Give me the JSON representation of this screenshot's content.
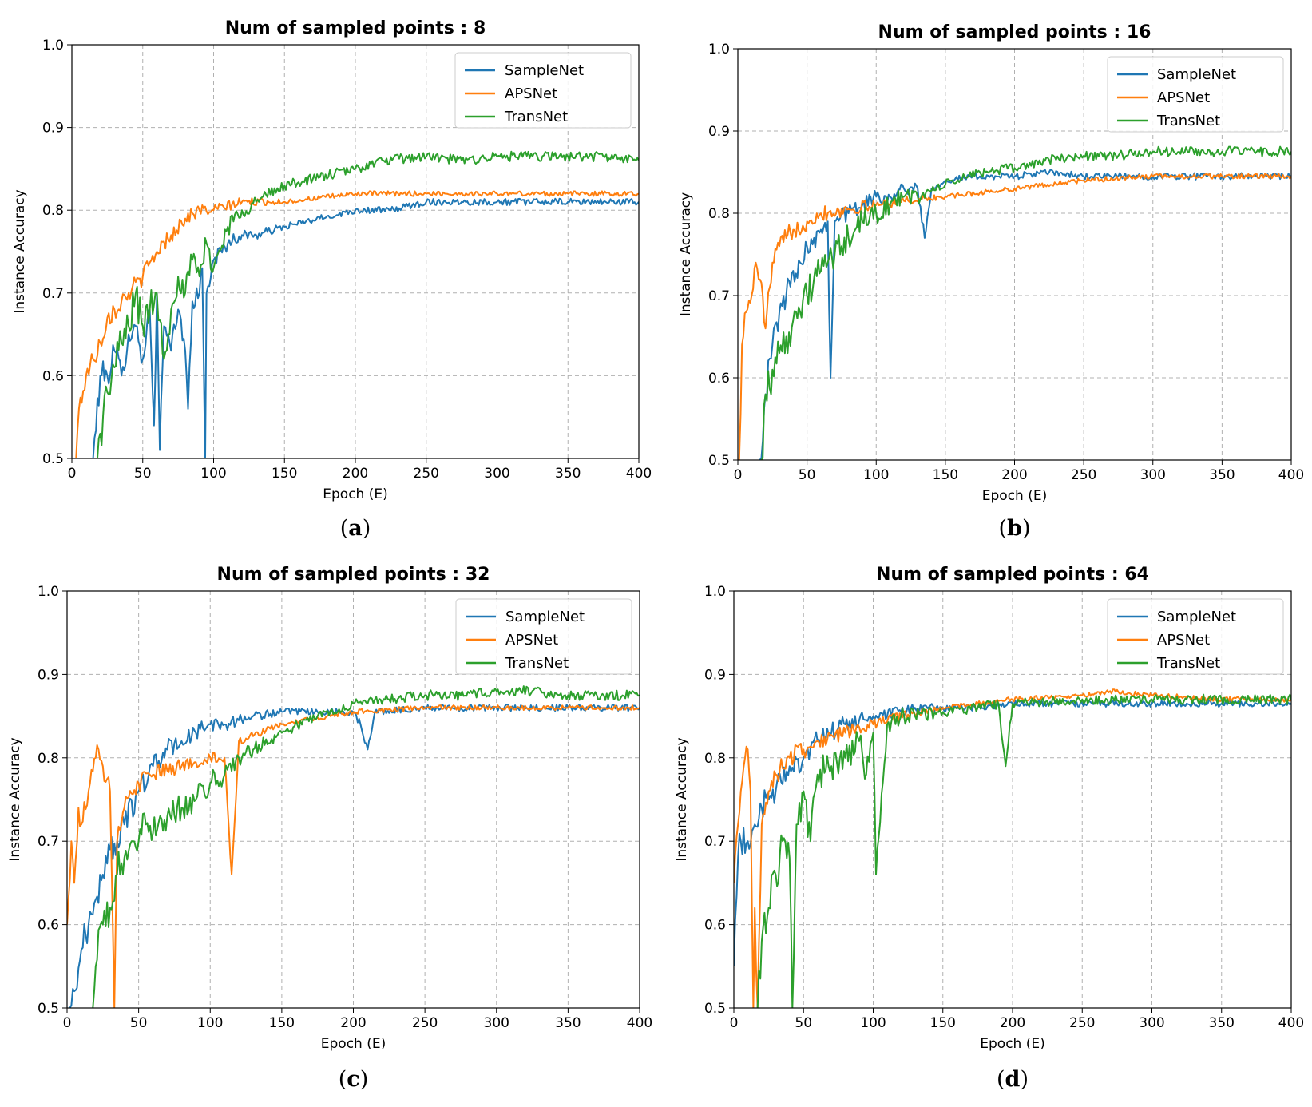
{
  "colors": {
    "SampleNet": "#1f77b4",
    "APSNet": "#ff7f0e",
    "TransNet": "#2ca02c"
  },
  "chart_data": [
    {
      "type": "line",
      "panel": "a",
      "panel_letter": "a",
      "title": "Num of sampled points : 8",
      "xlabel": "Epoch (E)",
      "ylabel": "Instance Accuracy",
      "xlim": [
        0,
        400
      ],
      "ylim": [
        0.5,
        1.0
      ],
      "xticks": [
        "0",
        "50",
        "100",
        "150",
        "200",
        "250",
        "300",
        "350",
        "400"
      ],
      "yticks": [
        "0.5",
        "0.6",
        "0.7",
        "0.8",
        "0.9",
        "1.0"
      ],
      "grid": true,
      "legend_position": "top-right",
      "series": [
        {
          "name": "SampleNet",
          "color": "#1f77b4",
          "x": [
            15,
            20,
            25,
            30,
            35,
            40,
            45,
            50,
            55,
            58,
            60,
            62,
            65,
            70,
            75,
            80,
            82,
            85,
            90,
            92,
            94,
            95,
            100,
            110,
            120,
            130,
            150,
            175,
            200,
            225,
            250,
            275,
            300,
            325,
            350,
            375,
            400
          ],
          "y": [
            0.5,
            0.6,
            0.6,
            0.63,
            0.6,
            0.65,
            0.66,
            0.62,
            0.68,
            0.54,
            0.7,
            0.51,
            0.66,
            0.63,
            0.68,
            0.63,
            0.56,
            0.69,
            0.7,
            0.73,
            0.49,
            0.7,
            0.74,
            0.76,
            0.77,
            0.77,
            0.78,
            0.79,
            0.8,
            0.8,
            0.81,
            0.81,
            0.81,
            0.81,
            0.81,
            0.81,
            0.81
          ],
          "noise": 0.004
        },
        {
          "name": "APSNet",
          "color": "#ff7f0e",
          "x": [
            3,
            5,
            10,
            15,
            20,
            25,
            30,
            35,
            40,
            50,
            60,
            70,
            80,
            90,
            100,
            120,
            150,
            175,
            200,
            250,
            300,
            350,
            400
          ],
          "y": [
            0.5,
            0.56,
            0.6,
            0.62,
            0.64,
            0.67,
            0.68,
            0.69,
            0.7,
            0.72,
            0.75,
            0.77,
            0.79,
            0.8,
            0.8,
            0.81,
            0.81,
            0.815,
            0.82,
            0.82,
            0.82,
            0.82,
            0.82
          ],
          "noise": 0.003
        },
        {
          "name": "TransNet",
          "color": "#2ca02c",
          "x": [
            18,
            20,
            25,
            30,
            35,
            40,
            45,
            50,
            55,
            60,
            65,
            70,
            75,
            80,
            85,
            90,
            95,
            100,
            110,
            120,
            130,
            150,
            175,
            200,
            220,
            250,
            275,
            300,
            325,
            350,
            375,
            400
          ],
          "y": [
            0.5,
            0.53,
            0.58,
            0.61,
            0.64,
            0.66,
            0.7,
            0.66,
            0.68,
            0.7,
            0.62,
            0.68,
            0.72,
            0.7,
            0.74,
            0.72,
            0.76,
            0.73,
            0.78,
            0.8,
            0.81,
            0.83,
            0.84,
            0.85,
            0.86,
            0.865,
            0.86,
            0.865,
            0.865,
            0.865,
            0.865,
            0.86
          ],
          "noise": 0.006
        }
      ]
    },
    {
      "type": "line",
      "panel": "b",
      "panel_letter": "b",
      "title": "Num of sampled points : 16",
      "xlabel": "Epoch (E)",
      "ylabel": "Instance Accuracy",
      "xlim": [
        0,
        400
      ],
      "ylim": [
        0.5,
        1.0
      ],
      "xticks": [
        "0",
        "50",
        "100",
        "150",
        "200",
        "250",
        "300",
        "350",
        "400"
      ],
      "yticks": [
        "0.5",
        "0.6",
        "0.7",
        "0.8",
        "0.9",
        "1.0"
      ],
      "grid": true,
      "legend_position": "top-right",
      "series": [
        {
          "name": "SampleNet",
          "color": "#1f77b4",
          "x": [
            16,
            20,
            25,
            30,
            35,
            40,
            45,
            50,
            55,
            60,
            65,
            67,
            70,
            75,
            80,
            90,
            100,
            110,
            120,
            130,
            135,
            140,
            150,
            175,
            200,
            225,
            250,
            275,
            300,
            325,
            350,
            375,
            400
          ],
          "y": [
            0.5,
            0.58,
            0.64,
            0.68,
            0.7,
            0.73,
            0.74,
            0.76,
            0.77,
            0.78,
            0.79,
            0.6,
            0.79,
            0.8,
            0.8,
            0.81,
            0.82,
            0.82,
            0.83,
            0.83,
            0.77,
            0.83,
            0.84,
            0.845,
            0.845,
            0.85,
            0.845,
            0.845,
            0.845,
            0.845,
            0.845,
            0.845,
            0.845
          ],
          "noise": 0.004
        },
        {
          "name": "APSNet",
          "color": "#ff7f0e",
          "x": [
            1,
            3,
            6,
            10,
            13,
            15,
            18,
            20,
            25,
            30,
            40,
            50,
            60,
            80,
            100,
            120,
            150,
            200,
            250,
            300,
            350,
            400
          ],
          "y": [
            0.5,
            0.64,
            0.68,
            0.7,
            0.74,
            0.72,
            0.7,
            0.66,
            0.74,
            0.76,
            0.78,
            0.79,
            0.8,
            0.805,
            0.81,
            0.815,
            0.82,
            0.83,
            0.84,
            0.845,
            0.845,
            0.845
          ],
          "noise": 0.003
        },
        {
          "name": "TransNet",
          "color": "#2ca02c",
          "x": [
            17,
            20,
            25,
            30,
            35,
            40,
            45,
            50,
            55,
            60,
            65,
            70,
            75,
            80,
            90,
            100,
            110,
            120,
            130,
            150,
            175,
            200,
            225,
            250,
            275,
            300,
            325,
            350,
            375,
            400
          ],
          "y": [
            0.5,
            0.58,
            0.61,
            0.63,
            0.65,
            0.67,
            0.68,
            0.7,
            0.72,
            0.73,
            0.74,
            0.75,
            0.76,
            0.77,
            0.79,
            0.8,
            0.81,
            0.82,
            0.82,
            0.835,
            0.85,
            0.855,
            0.865,
            0.87,
            0.87,
            0.875,
            0.875,
            0.875,
            0.875,
            0.875
          ],
          "noise": 0.006
        }
      ]
    },
    {
      "type": "line",
      "panel": "c",
      "panel_letter": "c",
      "title": "Num of sampled points : 32",
      "xlabel": "Epoch (E)",
      "ylabel": "Instance Accuracy",
      "xlim": [
        0,
        400
      ],
      "ylim": [
        0.5,
        1.0
      ],
      "xticks": [
        "0",
        "50",
        "100",
        "150",
        "200",
        "250",
        "300",
        "350",
        "400"
      ],
      "yticks": [
        "0.5",
        "0.6",
        "0.7",
        "0.8",
        "0.9",
        "1.0"
      ],
      "grid": true,
      "legend_position": "top-right",
      "series": [
        {
          "name": "SampleNet",
          "color": "#1f77b4",
          "x": [
            2,
            5,
            10,
            15,
            20,
            25,
            30,
            35,
            40,
            50,
            60,
            70,
            80,
            90,
            100,
            110,
            120,
            130,
            150,
            175,
            200,
            205,
            210,
            215,
            250,
            275,
            300,
            325,
            350,
            375,
            400
          ],
          "y": [
            0.5,
            0.52,
            0.57,
            0.6,
            0.63,
            0.66,
            0.69,
            0.7,
            0.72,
            0.76,
            0.79,
            0.81,
            0.82,
            0.83,
            0.84,
            0.84,
            0.845,
            0.85,
            0.855,
            0.855,
            0.855,
            0.84,
            0.81,
            0.855,
            0.86,
            0.86,
            0.86,
            0.86,
            0.86,
            0.86,
            0.86
          ],
          "noise": 0.004
        },
        {
          "name": "APSNet",
          "color": "#ff7f0e",
          "x": [
            0,
            3,
            5,
            8,
            10,
            15,
            20,
            22,
            25,
            30,
            33,
            35,
            40,
            50,
            60,
            80,
            100,
            110,
            115,
            120,
            150,
            200,
            250,
            300,
            350,
            400
          ],
          "y": [
            0.6,
            0.7,
            0.65,
            0.74,
            0.72,
            0.76,
            0.8,
            0.81,
            0.79,
            0.76,
            0.5,
            0.7,
            0.74,
            0.77,
            0.78,
            0.79,
            0.8,
            0.8,
            0.66,
            0.82,
            0.84,
            0.855,
            0.86,
            0.86,
            0.86,
            0.86
          ],
          "noise": 0.003
        },
        {
          "name": "TransNet",
          "color": "#2ca02c",
          "x": [
            18,
            20,
            25,
            30,
            35,
            40,
            45,
            50,
            55,
            60,
            65,
            70,
            80,
            90,
            100,
            110,
            120,
            130,
            150,
            175,
            200,
            225,
            250,
            275,
            300,
            325,
            350,
            375,
            400
          ],
          "y": [
            0.5,
            0.55,
            0.6,
            0.62,
            0.66,
            0.68,
            0.7,
            0.7,
            0.72,
            0.71,
            0.73,
            0.73,
            0.74,
            0.75,
            0.77,
            0.78,
            0.8,
            0.81,
            0.83,
            0.85,
            0.865,
            0.87,
            0.875,
            0.875,
            0.88,
            0.88,
            0.875,
            0.875,
            0.875
          ],
          "noise": 0.006
        }
      ]
    },
    {
      "type": "line",
      "panel": "d",
      "panel_letter": "d",
      "title": "Num of sampled points : 64",
      "xlabel": "Epoch (E)",
      "ylabel": "Instance Accuracy",
      "xlim": [
        0,
        400
      ],
      "ylim": [
        0.5,
        1.0
      ],
      "xticks": [
        "0",
        "50",
        "100",
        "150",
        "200",
        "250",
        "300",
        "350",
        "400"
      ],
      "yticks": [
        "0.5",
        "0.6",
        "0.7",
        "0.8",
        "0.9",
        "1.0"
      ],
      "grid": true,
      "legend_position": "top-right",
      "series": [
        {
          "name": "SampleNet",
          "color": "#1f77b4",
          "x": [
            0,
            3,
            5,
            10,
            15,
            20,
            25,
            30,
            40,
            50,
            60,
            70,
            80,
            90,
            100,
            110,
            120,
            130,
            150,
            175,
            200,
            225,
            250,
            275,
            300,
            325,
            350,
            375,
            400
          ],
          "y": [
            0.55,
            0.68,
            0.7,
            0.7,
            0.72,
            0.74,
            0.75,
            0.76,
            0.79,
            0.8,
            0.82,
            0.83,
            0.84,
            0.845,
            0.85,
            0.85,
            0.855,
            0.86,
            0.86,
            0.86,
            0.865,
            0.865,
            0.865,
            0.865,
            0.865,
            0.865,
            0.865,
            0.865,
            0.865
          ],
          "noise": 0.004
        },
        {
          "name": "APSNet",
          "color": "#ff7f0e",
          "x": [
            0,
            3,
            5,
            8,
            10,
            12,
            14,
            15,
            17,
            20,
            25,
            30,
            40,
            50,
            60,
            80,
            100,
            120,
            150,
            200,
            250,
            270,
            300,
            350,
            400
          ],
          "y": [
            0.65,
            0.72,
            0.76,
            0.8,
            0.81,
            0.76,
            0.5,
            0.62,
            0.5,
            0.72,
            0.76,
            0.78,
            0.8,
            0.81,
            0.82,
            0.83,
            0.84,
            0.85,
            0.86,
            0.87,
            0.875,
            0.88,
            0.875,
            0.87,
            0.87
          ],
          "noise": 0.003
        },
        {
          "name": "TransNet",
          "color": "#2ca02c",
          "x": [
            17,
            20,
            25,
            30,
            35,
            40,
            42,
            45,
            50,
            55,
            60,
            70,
            80,
            90,
            95,
            100,
            102,
            110,
            120,
            130,
            150,
            175,
            190,
            195,
            200,
            250,
            300,
            350,
            400
          ],
          "y": [
            0.5,
            0.58,
            0.62,
            0.66,
            0.7,
            0.68,
            0.5,
            0.72,
            0.76,
            0.7,
            0.78,
            0.79,
            0.8,
            0.82,
            0.78,
            0.83,
            0.66,
            0.84,
            0.85,
            0.85,
            0.855,
            0.86,
            0.865,
            0.79,
            0.865,
            0.87,
            0.87,
            0.87,
            0.87
          ],
          "noise": 0.006
        }
      ]
    }
  ]
}
